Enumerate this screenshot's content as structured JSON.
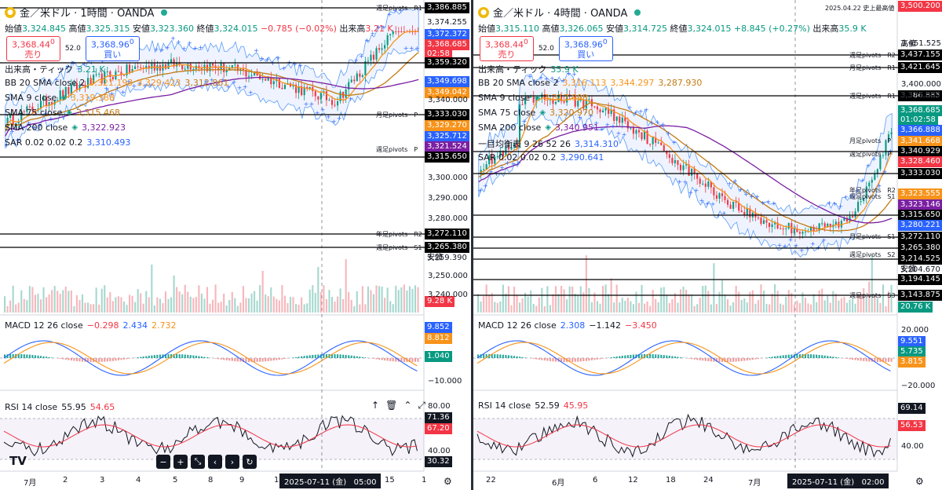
{
  "left": {
    "symbol": "金／米ドル · 1時間 · OANDA",
    "ohlc": {
      "o_label": "始値",
      "o": "3,324.845",
      "h_label": "高値",
      "h": "3,325.315",
      "l_label": "安値",
      "l": "3,323.360",
      "c_label": "終値",
      "c": "3,324.015",
      "change": "−0.785 (−0.02%)",
      "vol_label": "出来高",
      "vol": "3.21 K"
    },
    "sell": {
      "price": "3,368.44",
      "sup": "0",
      "label": "売り"
    },
    "buy": {
      "price": "3,368.96",
      "sup": "0",
      "label": "買い"
    },
    "spread": "52.0",
    "indicators": [
      {
        "name": "出来高・ティック",
        "v1": "3.21 K"
      },
      {
        "name": "BB 20 SMA close 2",
        "v1": "3,321.193",
        "v2": "3,329.423",
        "v3": "3,312.861"
      },
      {
        "name": "SMA 9 close",
        "v1": "3,319.388"
      },
      {
        "name": "SMA 75 close",
        "v1": "3,315.468"
      },
      {
        "name": "SMA 200 close",
        "v1": "3,322.923"
      },
      {
        "name": "SAR 0.02 0.02 0.2",
        "v1": "3,310.493"
      }
    ],
    "axis_ticks": [
      "3,340.000",
      "3,300.000",
      "3,290.000",
      "3,280.000",
      "3,250.000",
      "3,240.000"
    ],
    "tags": [
      {
        "text": "3,386.885",
        "kind": "pivot"
      },
      {
        "text": "3,374.255",
        "kind": "plain"
      },
      {
        "text": "高値",
        "kind": "plain"
      },
      {
        "text": "3,372.372",
        "kind": "blue"
      },
      {
        "text": "3,368.685",
        "kind": "red"
      },
      {
        "text": "02:58",
        "kind": "red"
      },
      {
        "text": "3,359.320",
        "kind": "pivot"
      },
      {
        "text": "3,349.698",
        "kind": "blue"
      },
      {
        "text": "3,349.042",
        "kind": "orange"
      },
      {
        "text": "3,333.030",
        "kind": "pivot"
      },
      {
        "text": "3,329.270",
        "kind": "orange"
      },
      {
        "text": "3,325.712",
        "kind": "blue"
      },
      {
        "text": "3,321.524",
        "kind": "purple"
      },
      {
        "text": "3,315.650",
        "kind": "pivot"
      },
      {
        "text": "3,272.110",
        "kind": "pivot"
      },
      {
        "text": "3,265.380",
        "kind": "pivot"
      },
      {
        "text": "3,259.390",
        "kind": "plain"
      },
      {
        "text": "安値",
        "kind": "plain"
      },
      {
        "text": "9.28 K",
        "kind": "red"
      }
    ],
    "pivots": [
      {
        "text": "週足pivots",
        "tag": "R1"
      },
      {
        "text": "月足pivots",
        "tag": "P"
      },
      {
        "text": "週足pivots",
        "tag": "P"
      },
      {
        "text": "年足pivots",
        "tag": "R2"
      },
      {
        "text": "週足pivots",
        "tag": "S1"
      }
    ],
    "macd": {
      "name": "MACD 12 26 close",
      "v1": "−0.298",
      "v2": "2.434",
      "v3": "2.732",
      "ticks": [
        "−10.000"
      ],
      "tags": [
        "9.852",
        "8.812",
        "1.040"
      ]
    },
    "rsi": {
      "name": "RSI 14 close",
      "v1": "55.95",
      "v2": "54.65",
      "ticks": [
        "80.00",
        "40.00"
      ],
      "tags": [
        "71.36",
        "67.20",
        "30.32"
      ]
    },
    "xlabels": [
      "7月",
      "2",
      "3",
      "4",
      "5",
      "8",
      "9",
      "1",
      "15",
      "1"
    ],
    "crosshair_time": "2025-07-11 (金)   05:00",
    "logo": "TV"
  },
  "right": {
    "symbol": "金／米ドル · 4時間 · OANDA",
    "date_note": "2025.04.22 史上最高値",
    "top_tag": "3,500.200",
    "ohlc": {
      "o_label": "始値",
      "o": "3,315.110",
      "h_label": "高値",
      "h": "3,326.065",
      "l_label": "安値",
      "l": "3,314.725",
      "c_label": "終値",
      "c": "3,324.015",
      "change": "+8.845 (+0.27%)",
      "vol_label": "出来高",
      "vol": "35.9 K"
    },
    "sell": {
      "price": "3,368.44",
      "sup": "0",
      "label": "売り"
    },
    "buy": {
      "price": "3,368.96",
      "sup": "0",
      "label": "買い"
    },
    "spread": "52.0",
    "indicators": [
      {
        "name": "出来高・ティック",
        "v1": "35.9 K"
      },
      {
        "name": "BB 20 SMA close 2",
        "v1": "3,316.113",
        "v2": "3,344.297",
        "v3": "3,287.930"
      },
      {
        "name": "SMA 9 close",
        "v1": "3,317.098"
      },
      {
        "name": "SMA 75 close",
        "v1": "3,320.970"
      },
      {
        "name": "SMA 200 close",
        "v1": "3,340.951"
      },
      {
        "name": "一目均衡表 9 26 52 26",
        "v1": "3,314.310"
      },
      {
        "name": "SAR 0.02 0.02 0.2",
        "v1": "3,290.641"
      }
    ],
    "axis_ticks": [
      "3,451.525",
      "3,400.000"
    ],
    "tags": [
      {
        "text": "高値",
        "kind": "plain"
      },
      {
        "text": "3,437.155",
        "kind": "pivot"
      },
      {
        "text": "3,421.645",
        "kind": "pivot"
      },
      {
        "text": "3,386.885",
        "kind": "pivot"
      },
      {
        "text": "3,375.000",
        "kind": "plain"
      },
      {
        "text": "3,368.685",
        "kind": "green"
      },
      {
        "text": "01:02:58",
        "kind": "green"
      },
      {
        "text": "3,366.888",
        "kind": "blue"
      },
      {
        "text": "3,341.668",
        "kind": "orange"
      },
      {
        "text": "3,340.929",
        "kind": "pivot"
      },
      {
        "text": "3,333.030",
        "kind": "pivot"
      },
      {
        "text": "3,328.460",
        "kind": "red"
      },
      {
        "text": "3,325.678",
        "kind": "blue"
      },
      {
        "text": "3,323.555",
        "kind": "orange"
      },
      {
        "text": "3,323.146",
        "kind": "purple"
      },
      {
        "text": "3,315.650",
        "kind": "pivot"
      },
      {
        "text": "3,280.221",
        "kind": "blue"
      },
      {
        "text": "3,272.110",
        "kind": "pivot"
      },
      {
        "text": "3,265.380",
        "kind": "pivot"
      },
      {
        "text": "3,214.525",
        "kind": "pivot"
      },
      {
        "text": "3,204.670",
        "kind": "plain"
      },
      {
        "text": "安値",
        "kind": "plain"
      },
      {
        "text": "3,194.145",
        "kind": "pivot"
      },
      {
        "text": "3,143.875",
        "kind": "pivot"
      },
      {
        "text": "20.76 K",
        "kind": "green"
      }
    ],
    "pivots": [
      {
        "text": "週足pivots",
        "tag": "R2"
      },
      {
        "text": "月足pivots",
        "tag": "R1"
      },
      {
        "text": "週足pivots",
        "tag": "R1"
      },
      {
        "text": "月足pivots",
        "tag": "P"
      },
      {
        "text": "週足pivots",
        "tag": "P"
      },
      {
        "text": "年足pivots",
        "tag": "R2"
      },
      {
        "text": "週足pivots",
        "tag": "S1"
      },
      {
        "text": "月足pivots",
        "tag": "S1"
      },
      {
        "text": "週足pivots",
        "tag": "S2"
      },
      {
        "text": "週足pivots",
        "tag": "S3"
      }
    ],
    "macd": {
      "name": "MACD 12 26 close",
      "v1": "2.308",
      "v2": "−1.142",
      "v3": "−3.450",
      "ticks": [
        "20.000",
        "−20.000"
      ],
      "tags": [
        "9.551",
        "5.735",
        "3.815"
      ]
    },
    "rsi": {
      "name": "RSI 14 close",
      "v1": "52.59",
      "v2": "45.95",
      "ticks": [
        "40.00"
      ],
      "tags": [
        "69.14",
        "56.53"
      ]
    },
    "xlabels": [
      "22",
      "6月",
      "6",
      "12",
      "18",
      "24",
      "7月"
    ],
    "crosshair_time": "2025-07-11 (金)   02:00"
  },
  "colors": {
    "up": "#089981",
    "down": "#f23645",
    "blue": "#2962ff",
    "orange": "#f7931a",
    "purple": "#7b1fa2",
    "pivot": "#000000",
    "sar": "#2962ff"
  }
}
